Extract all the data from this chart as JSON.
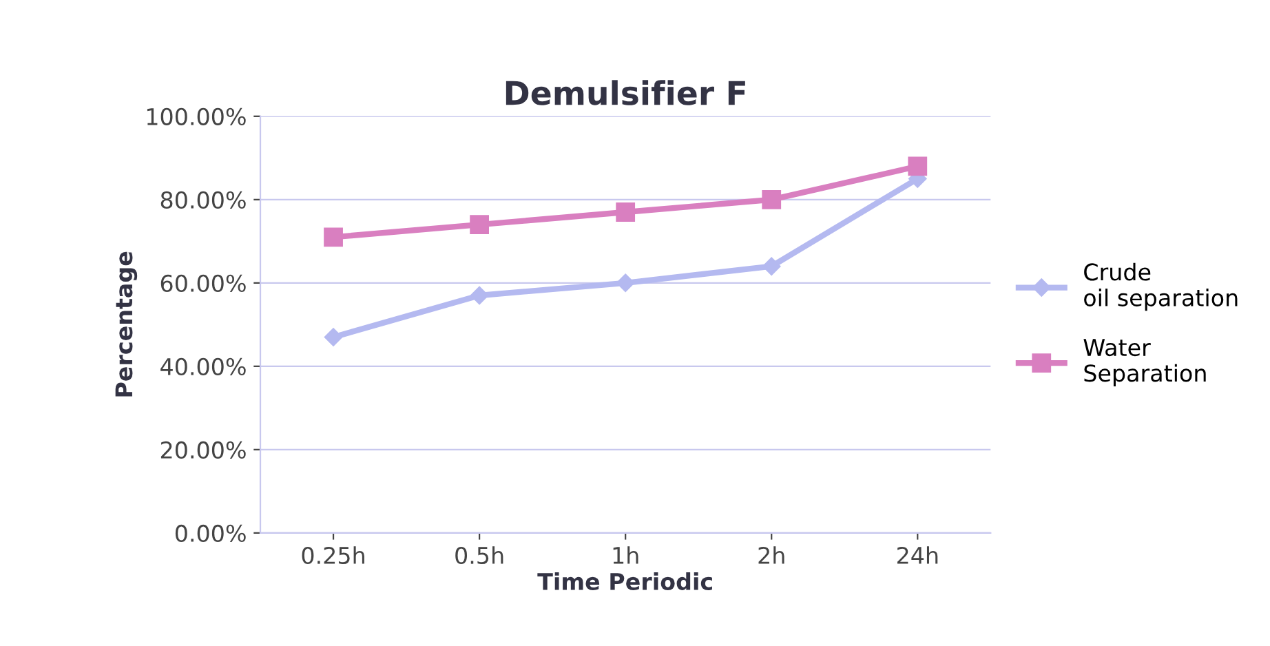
{
  "chart_data": {
    "type": "line",
    "title": "Demulsifier F",
    "xlabel": "Time Periodic",
    "ylabel": "Percentage",
    "categories": [
      "0.25h",
      "0.5h",
      "1h",
      "2h",
      "24h"
    ],
    "series": [
      {
        "name": "Crude oil separation",
        "color": "#b4b9f0",
        "marker": "diamond",
        "values": [
          47,
          57,
          60,
          64,
          85
        ]
      },
      {
        "name": "Water Separation",
        "color": "#d97fc0",
        "marker": "square",
        "values": [
          71,
          74,
          77,
          80,
          88
        ]
      }
    ],
    "ylim": [
      0,
      100
    ],
    "yticks": [
      {
        "value": 0,
        "label": "0.00%"
      },
      {
        "value": 20,
        "label": "20.00%"
      },
      {
        "value": 40,
        "label": "40.00%"
      },
      {
        "value": 60,
        "label": "60.00%"
      },
      {
        "value": 80,
        "label": "80.00%"
      },
      {
        "value": 100,
        "label": "100.00%"
      }
    ],
    "grid": "y",
    "legend": "right",
    "line_style": "solid"
  }
}
